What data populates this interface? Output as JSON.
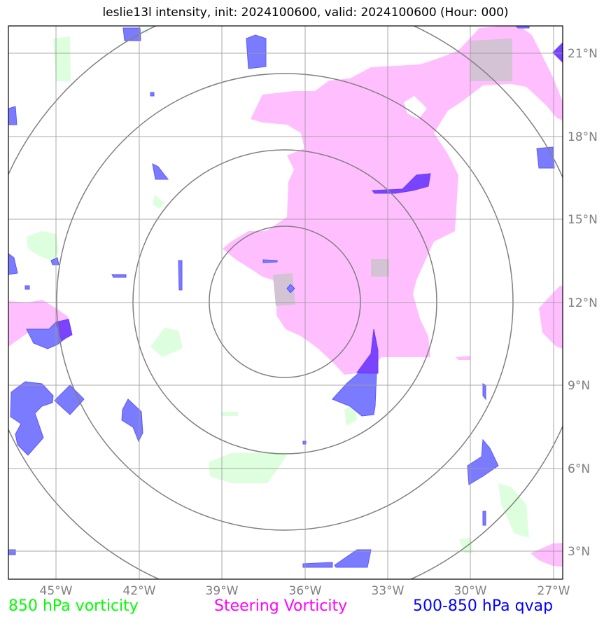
{
  "title": "leslie13l intensity, init: 2024100600, valid: 2024100600 (Hour: 000)",
  "map": {
    "lon_labels": [
      "45°W",
      "42°W",
      "39°W",
      "36°W",
      "33°W",
      "30°W",
      "27°W"
    ],
    "lat_labels": [
      "21°N",
      "18°N",
      "15°N",
      "12°N",
      "9°N",
      "6°N",
      "3°N"
    ],
    "center": "36.7°W, 12.0°N",
    "range_rings_deg": [
      3,
      6,
      9,
      12
    ]
  },
  "legend": [
    {
      "label": "850 hPa vorticity",
      "color": "#00ff00"
    },
    {
      "label": "Steering Vorticity",
      "color": "#ff00ff"
    },
    {
      "label": "500-850 hPa qvap",
      "color": "#0000ff"
    }
  ],
  "colors": {
    "green_fill": "#ddffdd",
    "magenta_fill": "#ffbfff",
    "blue_fill": "#7b7bff",
    "purple_fill": "#7a44ff",
    "grid": "#999999",
    "ring": "#808080"
  }
}
